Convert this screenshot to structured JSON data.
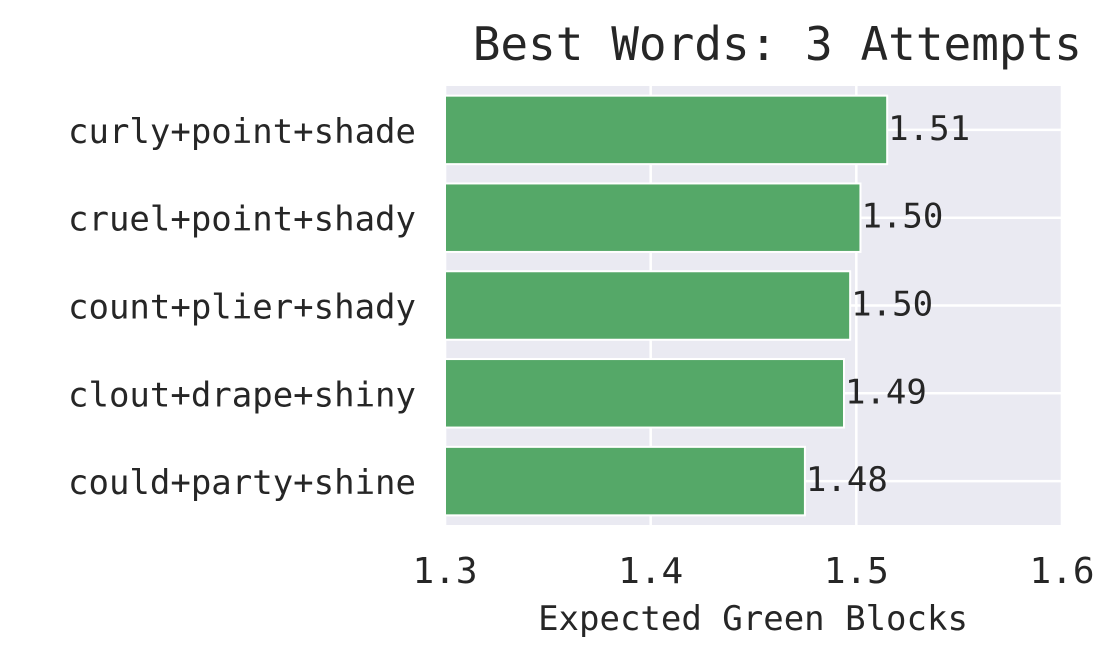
{
  "chart_data": {
    "type": "bar",
    "orientation": "horizontal",
    "title": "Best Words: 3 Attempts",
    "xlabel": "Expected Green Blocks",
    "ylabel": "",
    "categories": [
      "curly+point+shade",
      "cruel+point+shady",
      "count+plier+shady",
      "clout+drape+shiny",
      "could+party+shine"
    ],
    "values": [
      1.515,
      1.502,
      1.497,
      1.494,
      1.475
    ],
    "data_labels": [
      "1.51",
      "1.50",
      "1.50",
      "1.49",
      "1.48"
    ],
    "xlim": [
      1.3,
      1.6
    ],
    "xticks": [
      "1.3",
      "1.4",
      "1.5",
      "1.6"
    ],
    "grid": true,
    "bar_color": "#55a868",
    "background_color": "#eaeaf2"
  }
}
